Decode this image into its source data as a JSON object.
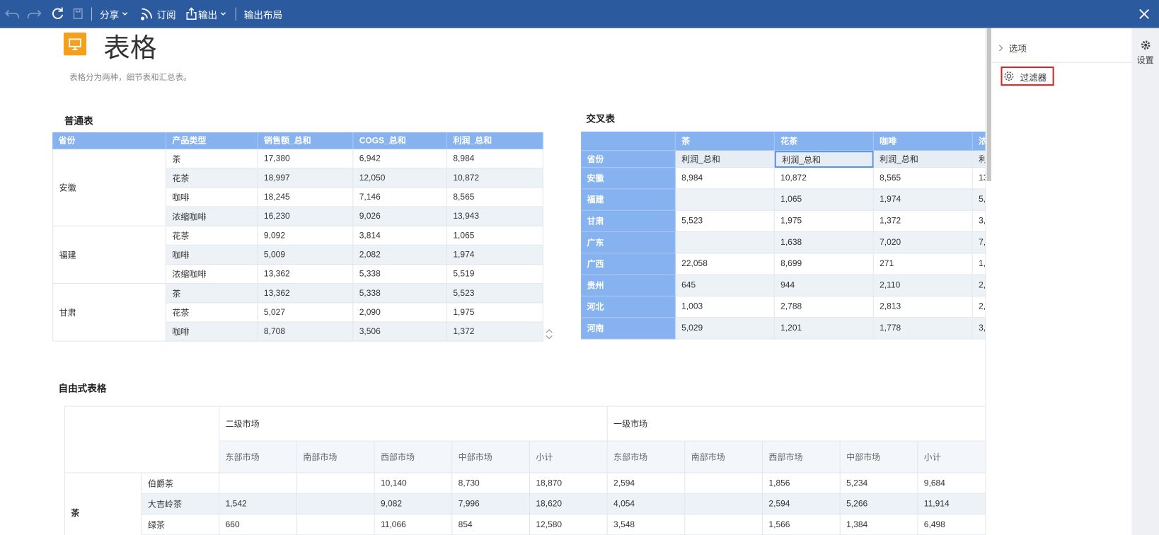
{
  "toolbar": {
    "share": "分享",
    "subscribe": "订阅",
    "export": "输出",
    "export_layout": "输出布局"
  },
  "header": {
    "title": "表格",
    "description": "表格分为两种，细节表和汇总表。"
  },
  "normal_table": {
    "title": "普通表",
    "headers": [
      "省份",
      "产品类型",
      "销售额_总和",
      "COGS_总和",
      "利润_总和"
    ],
    "groups": [
      {
        "province": "安徽",
        "rows": [
          [
            "茶",
            "17,380",
            "6,942",
            "8,984"
          ],
          [
            "花茶",
            "18,997",
            "12,050",
            "10,872"
          ],
          [
            "咖啡",
            "18,245",
            "7,146",
            "8,565"
          ],
          [
            "浓缩咖啡",
            "16,230",
            "9,026",
            "13,943"
          ]
        ]
      },
      {
        "province": "福建",
        "rows": [
          [
            "花茶",
            "9,092",
            "3,814",
            "1,065"
          ],
          [
            "咖啡",
            "5,009",
            "2,082",
            "1,974"
          ],
          [
            "浓缩咖啡",
            "13,362",
            "5,338",
            "5,519"
          ]
        ]
      },
      {
        "province": "甘肃",
        "rows": [
          [
            "茶",
            "13,362",
            "5,338",
            "5,523"
          ],
          [
            "花茶",
            "5,027",
            "2,090",
            "1,975"
          ],
          [
            "咖啡",
            "8,708",
            "3,506",
            "1,372"
          ]
        ]
      }
    ]
  },
  "cross_table": {
    "title": "交叉表",
    "corner_label": "省份",
    "columns": [
      "茶",
      "花茶",
      "咖啡",
      "浓"
    ],
    "measures": [
      "利润_总和",
      "利润_总和",
      "利润_总和",
      "利"
    ],
    "rows": [
      {
        "province": "安徽",
        "values": [
          "8,984",
          "10,872",
          "8,565",
          "13"
        ]
      },
      {
        "province": "福建",
        "values": [
          null,
          "1,065",
          "1,974",
          "5,"
        ]
      },
      {
        "province": "甘肃",
        "values": [
          "5,523",
          "1,975",
          "1,372",
          "3,"
        ]
      },
      {
        "province": "广东",
        "values": [
          null,
          "1,638",
          "7,020",
          "7,"
        ]
      },
      {
        "province": "广西",
        "values": [
          "22,058",
          "8,699",
          "271",
          "1,"
        ]
      },
      {
        "province": "贵州",
        "values": [
          "645",
          "944",
          "2,110",
          "2,"
        ]
      },
      {
        "province": "河北",
        "values": [
          "1,003",
          "2,788",
          "2,813",
          "2,"
        ]
      },
      {
        "province": "河南",
        "values": [
          "5,029",
          "1,201",
          "1,778",
          "3,"
        ]
      }
    ]
  },
  "freeform_table": {
    "title": "自由式表格",
    "column_groups": [
      {
        "label": "二级市场",
        "columns": [
          "东部市场",
          "南部市场",
          "西部市场",
          "中部市场",
          "小计"
        ]
      },
      {
        "label": "一级市场",
        "columns": [
          "东部市场",
          "南部市场",
          "西部市场",
          "中部市场",
          "小计"
        ]
      }
    ],
    "row_groups": [
      {
        "label": "茶",
        "rows": [
          {
            "name": "伯爵茶",
            "values": [
              null,
              null,
              "10,140",
              "8,730",
              "18,870",
              "2,594",
              null,
              "1,856",
              "5,234",
              "9,684"
            ]
          },
          {
            "name": "大吉岭茶",
            "values": [
              "1,542",
              null,
              "9,082",
              "7,996",
              "18,620",
              "4,054",
              null,
              "2,594",
              "5,266",
              "11,914"
            ]
          },
          {
            "name": "绿茶",
            "values": [
              "660",
              null,
              "11,066",
              "854",
              "12,580",
              "3,548",
              null,
              "1,566",
              "1,384",
              "6,498"
            ]
          }
        ]
      }
    ]
  },
  "side_panel": {
    "options": "选项",
    "filter": "过滤器",
    "settings": "设置"
  }
}
